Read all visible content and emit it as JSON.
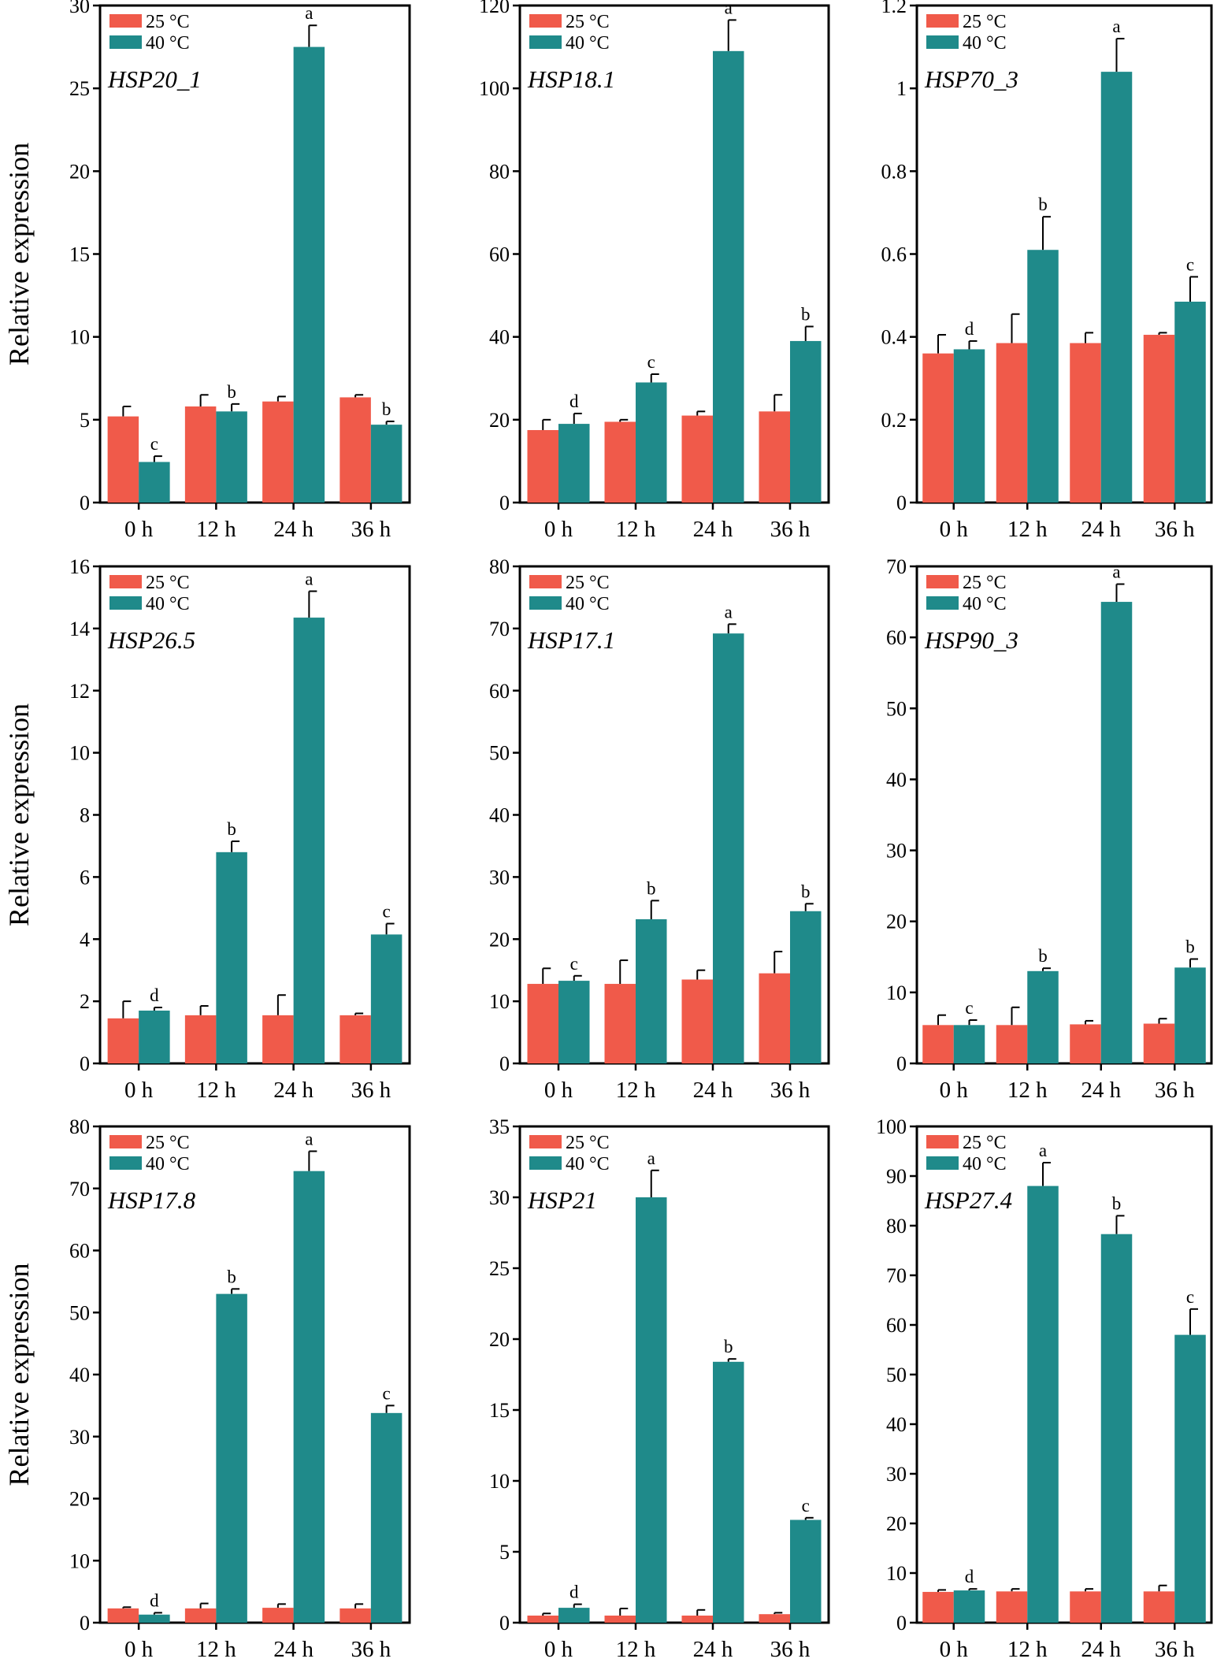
{
  "figure": {
    "series_names": [
      "25 °C",
      "40 °C"
    ],
    "colors": {
      "25 °C": "#f05a4a",
      "40 °C": "#1f8a8a"
    },
    "y_label": "Relative expression"
  },
  "chart_data": [
    {
      "type": "bar",
      "gene": "HSP20_1",
      "categories": [
        "0 h",
        "12 h",
        "24 h",
        "36 h"
      ],
      "ylim": [
        0,
        30
      ],
      "yticks": [
        0,
        5,
        10,
        15,
        20,
        25,
        30
      ],
      "ylabel": "Relative expression",
      "series": [
        {
          "name": "25 °C",
          "values": [
            5.2,
            5.8,
            6.1,
            6.35
          ],
          "errors": [
            0.6,
            0.7,
            0.3,
            0.15
          ]
        },
        {
          "name": "40 °C",
          "values": [
            2.45,
            5.5,
            27.5,
            4.7
          ],
          "errors": [
            0.35,
            0.45,
            1.3,
            0.2
          ]
        }
      ],
      "letters": [
        "c",
        "b",
        "a",
        "b"
      ]
    },
    {
      "type": "bar",
      "gene": "HSP18.1",
      "categories": [
        "0 h",
        "12 h",
        "24 h",
        "36 h"
      ],
      "ylim": [
        0,
        120
      ],
      "yticks": [
        0,
        20,
        40,
        60,
        80,
        100,
        120
      ],
      "ylabel": "",
      "series": [
        {
          "name": "25 °C",
          "values": [
            17.5,
            19.5,
            21,
            22
          ],
          "errors": [
            2.5,
            0.5,
            1,
            4
          ]
        },
        {
          "name": "40 °C",
          "values": [
            19,
            29,
            109,
            39
          ],
          "errors": [
            2.5,
            2,
            7.5,
            3.5
          ]
        }
      ],
      "letters": [
        "d",
        "c",
        "a",
        "b"
      ]
    },
    {
      "type": "bar",
      "gene": "HSP70_3",
      "categories": [
        "0 h",
        "12 h",
        "24 h",
        "36 h"
      ],
      "ylim": [
        0,
        1.2
      ],
      "yticks": [
        0,
        0.2,
        0.4,
        0.6,
        0.8,
        1,
        1.2
      ],
      "ylabel": "",
      "series": [
        {
          "name": "25 °C",
          "values": [
            0.36,
            0.385,
            0.385,
            0.405
          ],
          "errors": [
            0.045,
            0.07,
            0.025,
            0.005
          ]
        },
        {
          "name": "40 °C",
          "values": [
            0.37,
            0.61,
            1.04,
            0.485
          ],
          "errors": [
            0.02,
            0.08,
            0.08,
            0.06
          ]
        }
      ],
      "letters": [
        "d",
        "b",
        "a",
        "c"
      ]
    },
    {
      "type": "bar",
      "gene": "HSP26.5",
      "categories": [
        "0 h",
        "12 h",
        "24 h",
        "36 h"
      ],
      "ylim": [
        0,
        16
      ],
      "yticks": [
        0,
        2,
        4,
        6,
        8,
        10,
        12,
        14,
        16
      ],
      "ylabel": "Relative expression",
      "series": [
        {
          "name": "25 °C",
          "values": [
            1.45,
            1.55,
            1.55,
            1.55
          ],
          "errors": [
            0.55,
            0.3,
            0.65,
            0.06
          ]
        },
        {
          "name": "40 °C",
          "values": [
            1.7,
            6.8,
            14.35,
            4.15
          ],
          "errors": [
            0.1,
            0.35,
            0.85,
            0.35
          ]
        }
      ],
      "letters": [
        "d",
        "b",
        "a",
        "c"
      ]
    },
    {
      "type": "bar",
      "gene": "HSP17.1",
      "categories": [
        "0 h",
        "12 h",
        "24 h",
        "36 h"
      ],
      "ylim": [
        0,
        80
      ],
      "yticks": [
        0,
        10,
        20,
        30,
        40,
        50,
        60,
        70,
        80
      ],
      "ylabel": "",
      "series": [
        {
          "name": "25 °C",
          "values": [
            12.8,
            12.8,
            13.5,
            14.5
          ],
          "errors": [
            2.5,
            3.8,
            1.5,
            3.5
          ]
        },
        {
          "name": "40 °C",
          "values": [
            13.3,
            23.2,
            69.2,
            24.5
          ],
          "errors": [
            0.8,
            3,
            1.5,
            1.2
          ]
        }
      ],
      "letters": [
        "c",
        "b",
        "a",
        "b"
      ]
    },
    {
      "type": "bar",
      "gene": "HSP90_3",
      "categories": [
        "0 h",
        "12 h",
        "24 h",
        "36 h"
      ],
      "ylim": [
        0,
        70
      ],
      "yticks": [
        0,
        10,
        20,
        30,
        40,
        50,
        60,
        70
      ],
      "ylabel": "",
      "series": [
        {
          "name": "25 °C",
          "values": [
            5.4,
            5.4,
            5.5,
            5.6
          ],
          "errors": [
            1.4,
            2.5,
            0.5,
            0.7
          ]
        },
        {
          "name": "40 °C",
          "values": [
            5.4,
            13,
            65,
            13.5
          ],
          "errors": [
            0.7,
            0.4,
            2.5,
            1.2
          ]
        }
      ],
      "letters": [
        "c",
        "b",
        "a",
        "b"
      ]
    },
    {
      "type": "bar",
      "gene": "HSP17.8",
      "categories": [
        "0 h",
        "12 h",
        "24 h",
        "36 h"
      ],
      "ylim": [
        0,
        80
      ],
      "yticks": [
        0,
        10,
        20,
        30,
        40,
        50,
        60,
        70,
        80
      ],
      "ylabel": "Relative expression",
      "series": [
        {
          "name": "25 °C",
          "values": [
            2.3,
            2.3,
            2.4,
            2.3
          ],
          "errors": [
            0.2,
            0.8,
            0.6,
            0.7
          ]
        },
        {
          "name": "40 °C",
          "values": [
            1.3,
            53,
            72.8,
            33.8
          ],
          "errors": [
            0.3,
            0.8,
            3.2,
            1.2
          ]
        }
      ],
      "letters": [
        "d",
        "b",
        "a",
        "c"
      ]
    },
    {
      "type": "bar",
      "gene": "HSP21",
      "categories": [
        "0 h",
        "12 h",
        "24 h",
        "36 h"
      ],
      "ylim": [
        0,
        35
      ],
      "yticks": [
        0,
        5,
        10,
        15,
        20,
        25,
        30,
        35
      ],
      "ylabel": "",
      "series": [
        {
          "name": "25 °C",
          "values": [
            0.5,
            0.5,
            0.5,
            0.6
          ],
          "errors": [
            0.15,
            0.5,
            0.4,
            0.1
          ]
        },
        {
          "name": "40 °C",
          "values": [
            1.05,
            30,
            18.4,
            7.25
          ],
          "errors": [
            0.25,
            1.9,
            0.2,
            0.15
          ]
        }
      ],
      "letters": [
        "d",
        "a",
        "b",
        "c"
      ]
    },
    {
      "type": "bar",
      "gene": "HSP27.4",
      "categories": [
        "0 h",
        "12 h",
        "24 h",
        "36 h"
      ],
      "ylim": [
        0,
        100
      ],
      "yticks": [
        0,
        10,
        20,
        30,
        40,
        50,
        60,
        70,
        80,
        90,
        100
      ],
      "ylabel": "",
      "series": [
        {
          "name": "25 °C",
          "values": [
            6.2,
            6.3,
            6.3,
            6.3
          ],
          "errors": [
            0.4,
            0.5,
            0.5,
            1.2
          ]
        },
        {
          "name": "40 °C",
          "values": [
            6.5,
            88,
            78.3,
            58
          ],
          "errors": [
            0.3,
            4.7,
            3.7,
            5.2
          ]
        }
      ],
      "letters": [
        "d",
        "a",
        "b",
        "c"
      ]
    }
  ]
}
